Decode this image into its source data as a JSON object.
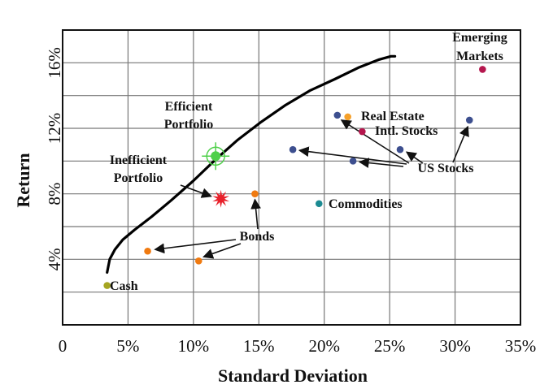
{
  "chart_data": {
    "type": "scatter",
    "title": "",
    "xlabel": "Standard Deviation",
    "ylabel": "Return",
    "xlim": [
      0,
      35
    ],
    "ylim": [
      0,
      18
    ],
    "x_ticks": [
      0,
      5,
      10,
      15,
      20,
      25,
      30,
      35
    ],
    "x_tick_labels": [
      "0",
      "5%",
      "10%",
      "15%",
      "20%",
      "25%",
      "30%",
      "35%"
    ],
    "y_ticks": [
      4,
      8,
      12,
      16
    ],
    "y_tick_labels": [
      "4%",
      "8%",
      "12%",
      "16%"
    ],
    "grid": true,
    "legend": "none",
    "frontier": {
      "x": [
        3.4,
        3.6,
        4.0,
        4.6,
        5.5,
        6.8,
        8.3,
        10.0,
        11.7,
        13.4,
        15.2,
        17.0,
        18.9,
        20.8,
        22.6,
        24.2,
        25.1,
        25.4
      ],
      "y": [
        3.2,
        4.0,
        4.6,
        5.2,
        5.8,
        6.6,
        7.6,
        8.8,
        10.1,
        11.3,
        12.4,
        13.4,
        14.3,
        15.0,
        15.7,
        16.2,
        16.4,
        16.4
      ]
    },
    "points": [
      {
        "name": "Cash",
        "x": 3.4,
        "y": 2.4,
        "color": "#a5a521"
      },
      {
        "name": "Bonds",
        "x": 6.5,
        "y": 4.5,
        "color": "#f07a10"
      },
      {
        "name": "Bonds",
        "x": 10.4,
        "y": 3.9,
        "color": "#f07a10"
      },
      {
        "name": "Bonds",
        "x": 14.7,
        "y": 8.0,
        "color": "#f07a10"
      },
      {
        "name": "US Stocks",
        "x": 17.6,
        "y": 10.7,
        "color": "#3d4f8f"
      },
      {
        "name": "US Stocks",
        "x": 21.0,
        "y": 12.8,
        "color": "#3d4f8f"
      },
      {
        "name": "US Stocks",
        "x": 22.2,
        "y": 10.0,
        "color": "#3d4f8f"
      },
      {
        "name": "US Stocks",
        "x": 25.8,
        "y": 10.7,
        "color": "#3d4f8f"
      },
      {
        "name": "US Stocks",
        "x": 31.1,
        "y": 12.5,
        "color": "#3d4f8f"
      },
      {
        "name": "Real Estate",
        "x": 21.8,
        "y": 12.7,
        "color": "#f5a02a"
      },
      {
        "name": "Intl. Stocks",
        "x": 22.9,
        "y": 11.8,
        "color": "#b5174e"
      },
      {
        "name": "Commodities",
        "x": 19.6,
        "y": 7.4,
        "color": "#1b8a92"
      },
      {
        "name": "Emerging Markets",
        "x": 32.1,
        "y": 15.6,
        "color": "#b5174e"
      }
    ],
    "efficient_portfolio": {
      "x": 11.7,
      "y": 10.3,
      "color": "#4fd04a"
    },
    "inefficient_portfolio": {
      "x": 12.1,
      "y": 7.7,
      "color": "#e8202a"
    },
    "annotations": {
      "efficient_1": "Efficient",
      "efficient_2": "Portfolio",
      "inefficient_1": "Inefficient",
      "inefficient_2": "Portfolio",
      "bonds": "Bonds",
      "cash": "Cash",
      "real_estate": "Real Estate",
      "intl_stocks": "Intl. Stocks",
      "us_stocks": "US Stocks",
      "commodities": "Commodities",
      "emerging_1": "Emerging",
      "emerging_2": "Markets"
    }
  }
}
